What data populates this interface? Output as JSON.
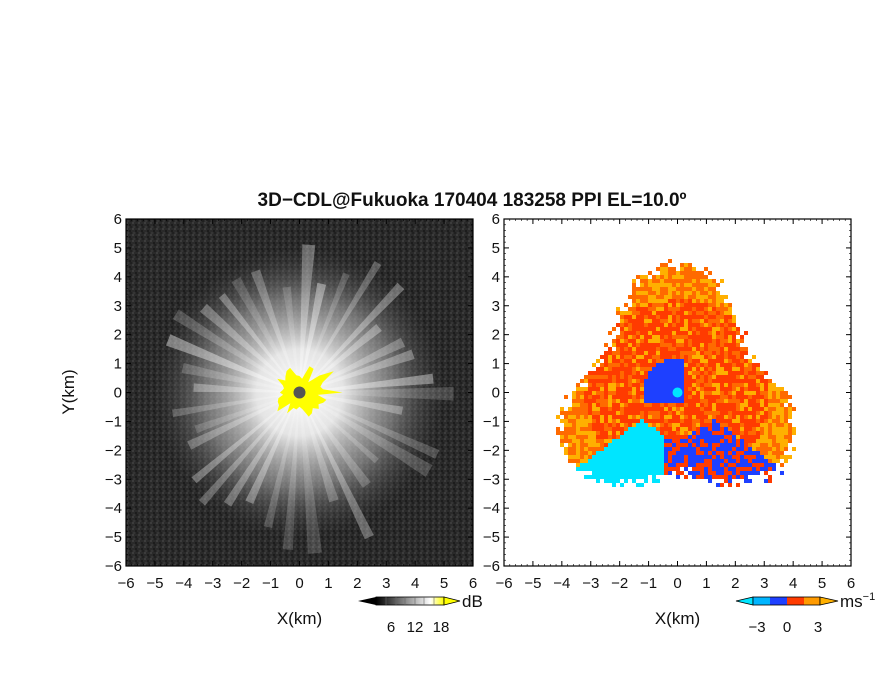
{
  "title": "3D−CDL@Fukuoka 170404 183258 PPI EL=10.0º",
  "chart_data": [
    {
      "type": "heatmap",
      "quantity": "reflectivity",
      "xlabel": "X(km)",
      "ylabel": "Y(km)",
      "xlim": [
        -6,
        6
      ],
      "ylim": [
        -6,
        6
      ],
      "xticks": [
        "−6",
        "−5",
        "−4",
        "−3",
        "−2",
        "−1",
        "0",
        "1",
        "2",
        "3",
        "4",
        "5",
        "6"
      ],
      "yticks": [
        "6",
        "5",
        "4",
        "3",
        "2",
        "1",
        "0",
        "−1",
        "−2",
        "−3",
        "−4",
        "−5",
        "−6"
      ],
      "colorbar": {
        "ticks": [
          "6",
          "12",
          "18"
        ],
        "unit": "dB",
        "colors": [
          "#000000",
          "#ffffff",
          "#ffff00"
        ]
      },
      "features": {
        "echo_radius_km": 3.5,
        "core_radius_km": 0.9,
        "background": "#2a2a2a",
        "core_color": "#ffff00",
        "center_color": "#555555"
      }
    },
    {
      "type": "heatmap",
      "quantity": "doppler velocity",
      "xlabel": "X(km)",
      "ylabel": "",
      "xlim": [
        -6,
        6
      ],
      "ylim": [
        -6,
        6
      ],
      "xticks": [
        "−6",
        "−5",
        "−4",
        "−3",
        "−2",
        "−1",
        "0",
        "1",
        "2",
        "3",
        "4",
        "5",
        "6"
      ],
      "yticks": [
        "6",
        "5",
        "4",
        "3",
        "2",
        "1",
        "0",
        "−1",
        "−2",
        "−3",
        "−4",
        "−5",
        "−6"
      ],
      "colorbar": {
        "ticks": [
          "−3",
          "0",
          "3"
        ],
        "unit": "ms",
        "unit_exp": "−1",
        "colors": [
          "#00e5ff",
          "#1e40ff",
          "#ff3b00",
          "#ffb000"
        ]
      },
      "features": {
        "outer_radius_km": 4.0,
        "inner_radius_km": 1.2,
        "center_color": "#00e5ff"
      }
    }
  ]
}
